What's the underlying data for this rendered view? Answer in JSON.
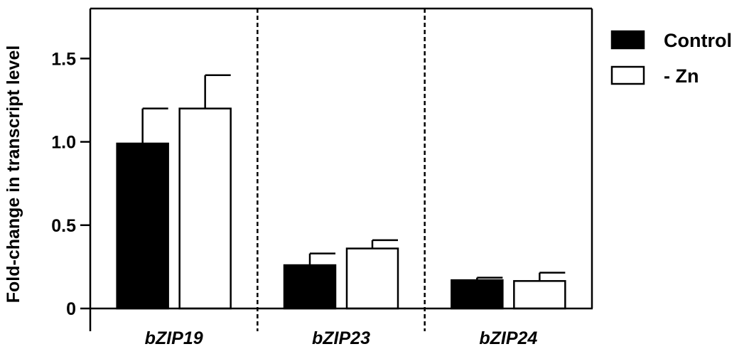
{
  "chart_data": {
    "type": "bar",
    "title": "",
    "xlabel": "",
    "ylabel": "Fold-change in transcript level",
    "categories": [
      "bZIP19",
      "bZIP23",
      "bZIP24"
    ],
    "ylim": [
      0,
      1.8
    ],
    "yticks": [
      0,
      0.5,
      1.0,
      1.5
    ],
    "ytick_labels": [
      "0",
      "0.5",
      "1.0",
      "1.5"
    ],
    "series": [
      {
        "name": "Control",
        "fill": "#000000",
        "values": [
          0.99,
          0.26,
          0.17
        ],
        "errors": [
          0.21,
          0.07,
          0.015
        ]
      },
      {
        "name": "- Zn",
        "fill": "#ffffff",
        "values": [
          1.2,
          0.36,
          0.165
        ],
        "errors": [
          0.2,
          0.05,
          0.05
        ]
      }
    ],
    "grid": false,
    "legend_position": "top-right",
    "group_separators": "dashed"
  }
}
